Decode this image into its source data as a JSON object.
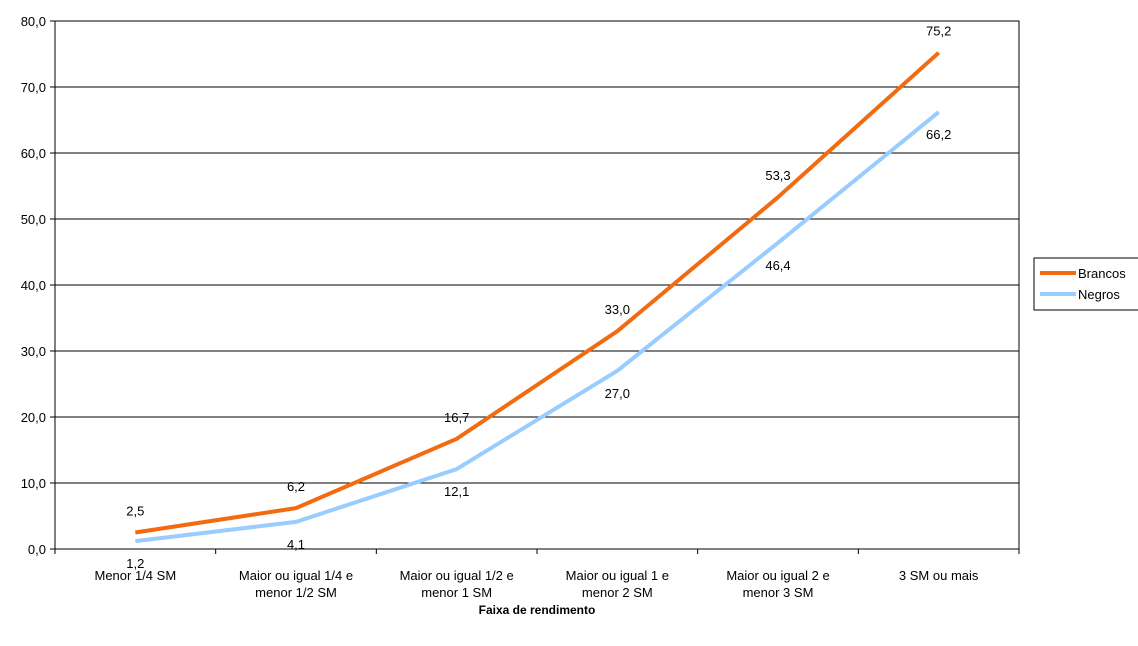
{
  "chart_data": {
    "type": "line",
    "xlabel": "Faixa de rendimento",
    "ylabel": "",
    "ylim": [
      0,
      80
    ],
    "yticks": [
      "0,0",
      "10,0",
      "20,0",
      "30,0",
      "40,0",
      "50,0",
      "60,0",
      "70,0",
      "80,0"
    ],
    "grid": true,
    "legend_position": "right",
    "categories": [
      [
        "Menor 1/4 SM"
      ],
      [
        "Maior ou igual 1/4 e",
        "menor 1/2 SM"
      ],
      [
        "Maior ou  igual 1/2 e",
        "menor 1 SM"
      ],
      [
        "Maior ou igual 1 e",
        "menor 2 SM"
      ],
      [
        "Maior ou igual 2 e",
        "menor 3 SM"
      ],
      [
        "3 SM ou mais"
      ]
    ],
    "series": [
      {
        "name": "Brancos",
        "color": "#f26b11",
        "values": [
          2.5,
          6.2,
          16.7,
          33.0,
          53.3,
          75.2
        ],
        "labels": [
          "2,5",
          "6,2",
          "16,7",
          "33,0",
          "53,3",
          "75,2"
        ]
      },
      {
        "name": "Negros",
        "color": "#99ccff",
        "values": [
          1.2,
          4.1,
          12.1,
          27.0,
          46.4,
          66.2
        ],
        "labels": [
          "1,2",
          "4,1",
          "12,1",
          "27,0",
          "46,4",
          "66,2"
        ]
      }
    ]
  }
}
